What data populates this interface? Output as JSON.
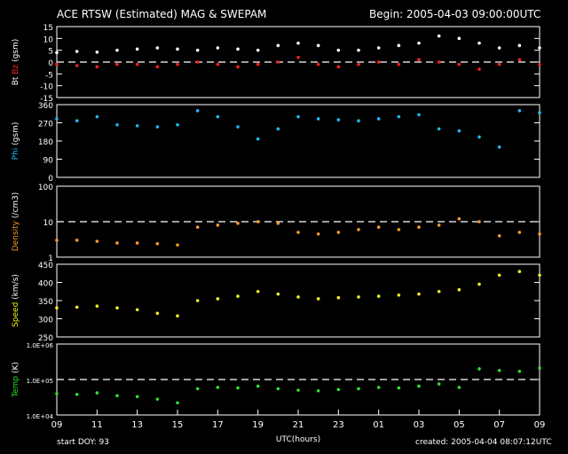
{
  "header": {
    "title": "ACE RTSW (Estimated) MAG & SWEPAM",
    "begin": "Begin: 2005-04-03 09:00:00UTC"
  },
  "footer": {
    "start_doy": "start DOY:  93",
    "created": "created: 2005-04-04 08:07:12UTC"
  },
  "colors": {
    "bt": "#ffffff",
    "bz": "#ff2020",
    "phi": "#22b8f0",
    "density": "#ff9a30",
    "speed": "#f0f020",
    "temp": "#30e030",
    "frame": "#ffffff",
    "reference": "#ffffff"
  },
  "chart_data": {
    "type": "scatter",
    "xlabel": "UTC(hours)",
    "x_ticks": [
      "09",
      "11",
      "13",
      "15",
      "17",
      "19",
      "21",
      "23",
      "01",
      "03",
      "05",
      "07",
      "09"
    ],
    "x_range_hours": [
      0,
      24
    ],
    "panels": [
      {
        "id": "mag",
        "ylabel": [
          {
            "text": "Bt",
            "color": "#ffffff"
          },
          {
            "text": "Bz",
            "color": "#ff2020"
          },
          {
            "text": "(gsm)",
            "color": "#ffffff"
          }
        ],
        "scale": "linear",
        "ylim": [
          -15,
          15
        ],
        "ticks": [
          "15",
          "10",
          "5",
          "0",
          "-5",
          "-10",
          "-15"
        ],
        "tick_values": [
          15,
          10,
          5,
          0,
          -5,
          -10,
          -15
        ],
        "reference": [
          0
        ],
        "series": [
          {
            "name": "Bt",
            "color": "#ffffff",
            "x": [
              0,
              1,
              2,
              3,
              4,
              5,
              6,
              7,
              8,
              9,
              10,
              11,
              12,
              13,
              14,
              15,
              16,
              17,
              18,
              19,
              20,
              21,
              22,
              23,
              24
            ],
            "y": [
              4,
              4.5,
              4.2,
              5,
              5.5,
              6,
              5.5,
              5,
              6,
              5.5,
              5,
              7,
              8,
              7,
              5,
              5,
              6,
              7,
              8,
              11,
              10,
              8,
              6,
              7,
              6
            ]
          },
          {
            "name": "Bz",
            "color": "#ff2020",
            "x": [
              0,
              1,
              2,
              3,
              4,
              5,
              6,
              7,
              8,
              9,
              10,
              11,
              12,
              13,
              14,
              15,
              16,
              17,
              18,
              19,
              20,
              21,
              22,
              23,
              24
            ],
            "y": [
              -1,
              -1.5,
              -2,
              -1,
              -1,
              -2,
              -1,
              0,
              -1,
              -2,
              -1,
              0,
              2,
              -1,
              -2,
              -1,
              0,
              -1,
              1,
              0,
              -1,
              -3,
              -1,
              1,
              -1
            ]
          }
        ]
      },
      {
        "id": "phi",
        "ylabel": [
          {
            "text": "Phi",
            "color": "#22b8f0"
          },
          {
            "text": "(gsm)",
            "color": "#ffffff"
          }
        ],
        "scale": "linear",
        "ylim": [
          0,
          360
        ],
        "ticks": [
          "360",
          "270",
          "180",
          "90",
          "0"
        ],
        "tick_values": [
          360,
          270,
          180,
          90,
          0
        ],
        "reference": [],
        "series": [
          {
            "name": "Phi",
            "color": "#22b8f0",
            "x": [
              0,
              1,
              2,
              3,
              4,
              5,
              6,
              7,
              8,
              9,
              10,
              11,
              12,
              13,
              14,
              15,
              16,
              17,
              18,
              19,
              20,
              21,
              22,
              23,
              24
            ],
            "y": [
              290,
              280,
              300,
              260,
              255,
              250,
              260,
              330,
              300,
              250,
              190,
              240,
              300,
              290,
              285,
              280,
              290,
              300,
              310,
              240,
              230,
              200,
              150,
              330,
              320
            ]
          }
        ]
      },
      {
        "id": "density",
        "ylabel": [
          {
            "text": "Density",
            "color": "#ff9a30"
          },
          {
            "text": "(/cm3)",
            "color": "#ffffff"
          }
        ],
        "scale": "log",
        "ylim": [
          1,
          100
        ],
        "ticks": [
          "100",
          "10",
          "1"
        ],
        "tick_values": [
          100,
          10,
          1
        ],
        "reference": [
          10
        ],
        "series": [
          {
            "name": "Density",
            "color": "#ff9a30",
            "x": [
              0,
              1,
              2,
              3,
              4,
              5,
              6,
              7,
              8,
              9,
              10,
              11,
              12,
              13,
              14,
              15,
              16,
              17,
              18,
              19,
              20,
              21,
              22,
              23,
              24
            ],
            "y": [
              3,
              3,
              2.8,
              2.5,
              2.5,
              2.4,
              2.2,
              7,
              8,
              9,
              10,
              9,
              5,
              4.5,
              5,
              6,
              7,
              6,
              7,
              8,
              12,
              10,
              4,
              5,
              4.5
            ]
          }
        ]
      },
      {
        "id": "speed",
        "ylabel": [
          {
            "text": "Speed",
            "color": "#f0f020"
          },
          {
            "text": "(km/s)",
            "color": "#ffffff"
          }
        ],
        "scale": "linear",
        "ylim": [
          250,
          450
        ],
        "ticks": [
          "450",
          "400",
          "350",
          "300",
          "250"
        ],
        "tick_values": [
          450,
          400,
          350,
          300,
          250
        ],
        "reference": [],
        "series": [
          {
            "name": "Speed",
            "color": "#f0f020",
            "x": [
              0,
              1,
              2,
              3,
              4,
              5,
              6,
              7,
              8,
              9,
              10,
              11,
              12,
              13,
              14,
              15,
              16,
              17,
              18,
              19,
              20,
              21,
              22,
              23,
              24
            ],
            "y": [
              330,
              332,
              335,
              330,
              325,
              315,
              308,
              350,
              355,
              362,
              375,
              368,
              360,
              355,
              358,
              360,
              362,
              365,
              368,
              375,
              380,
              395,
              420,
              430,
              420
            ]
          }
        ]
      },
      {
        "id": "temp",
        "ylabel": [
          {
            "text": "Temp",
            "color": "#30e030"
          },
          {
            "text": "(K)",
            "color": "#ffffff"
          }
        ],
        "scale": "log",
        "ylim": [
          10000,
          1000000
        ],
        "ticks": [
          "1.0E+06",
          "1.0E+05",
          "1.0E+04"
        ],
        "tick_values": [
          1000000,
          100000,
          10000
        ],
        "reference": [
          100000
        ],
        "series": [
          {
            "name": "Temp",
            "color": "#30e030",
            "x": [
              0,
              1,
              2,
              3,
              4,
              5,
              6,
              7,
              8,
              9,
              10,
              11,
              12,
              13,
              14,
              15,
              16,
              17,
              18,
              19,
              20,
              21,
              22,
              23,
              24
            ],
            "y": [
              40000,
              38000,
              42000,
              35000,
              33000,
              28000,
              22000,
              55000,
              60000,
              58000,
              65000,
              55000,
              50000,
              48000,
              52000,
              55000,
              60000,
              58000,
              65000,
              75000,
              60000,
              200000,
              180000,
              170000,
              210000
            ]
          }
        ]
      }
    ]
  }
}
